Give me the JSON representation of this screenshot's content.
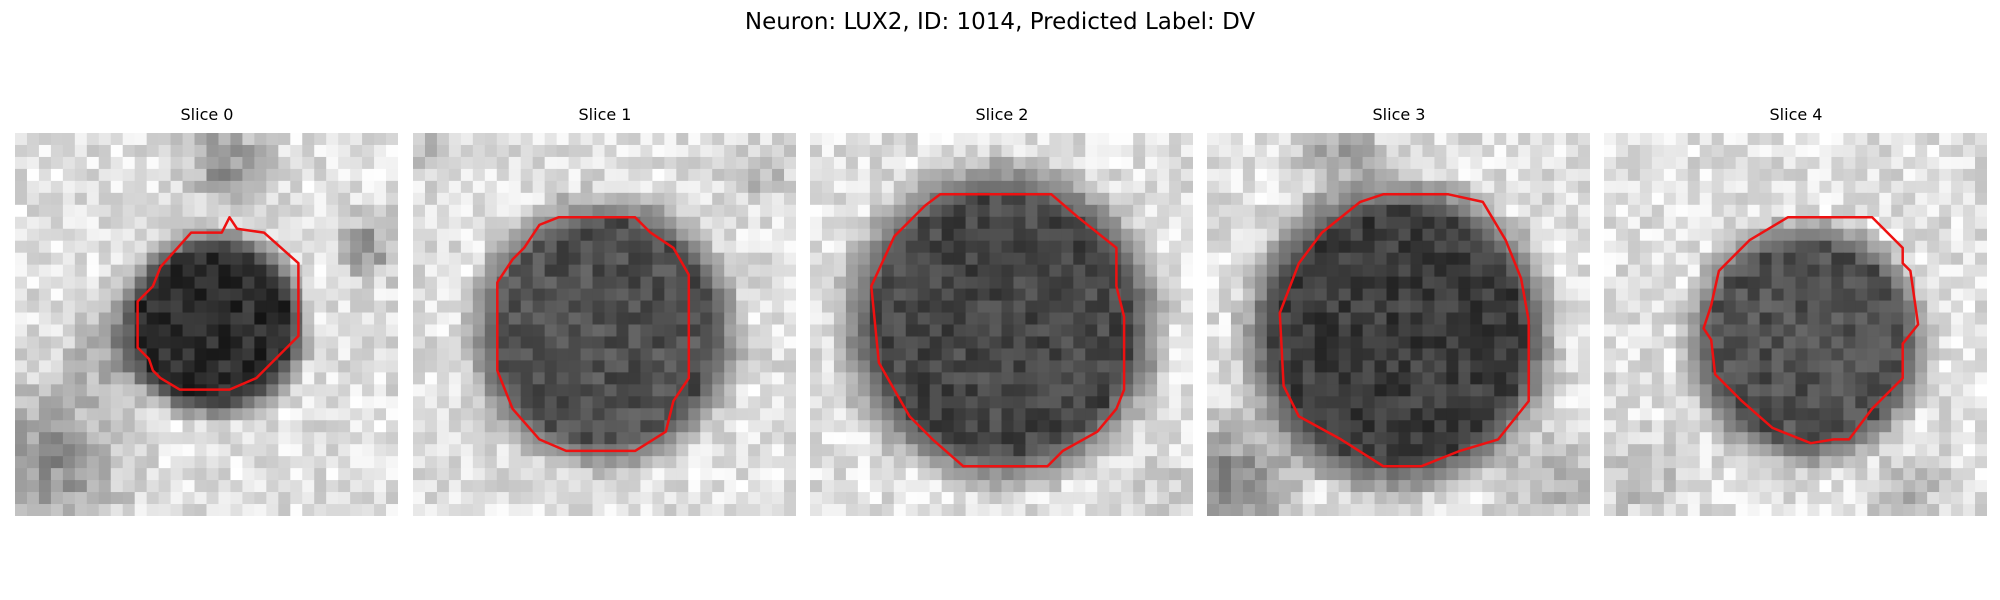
{
  "figure": {
    "title": "Neuron: LUX2, ID: 1014, Predicted Label: DV"
  },
  "style": {
    "contour_color": "#ee1111"
  },
  "panels": [
    {
      "title": "Slice 0"
    },
    {
      "title": "Slice 1"
    },
    {
      "title": "Slice 2"
    },
    {
      "title": "Slice 3"
    },
    {
      "title": "Slice 4"
    }
  ]
}
